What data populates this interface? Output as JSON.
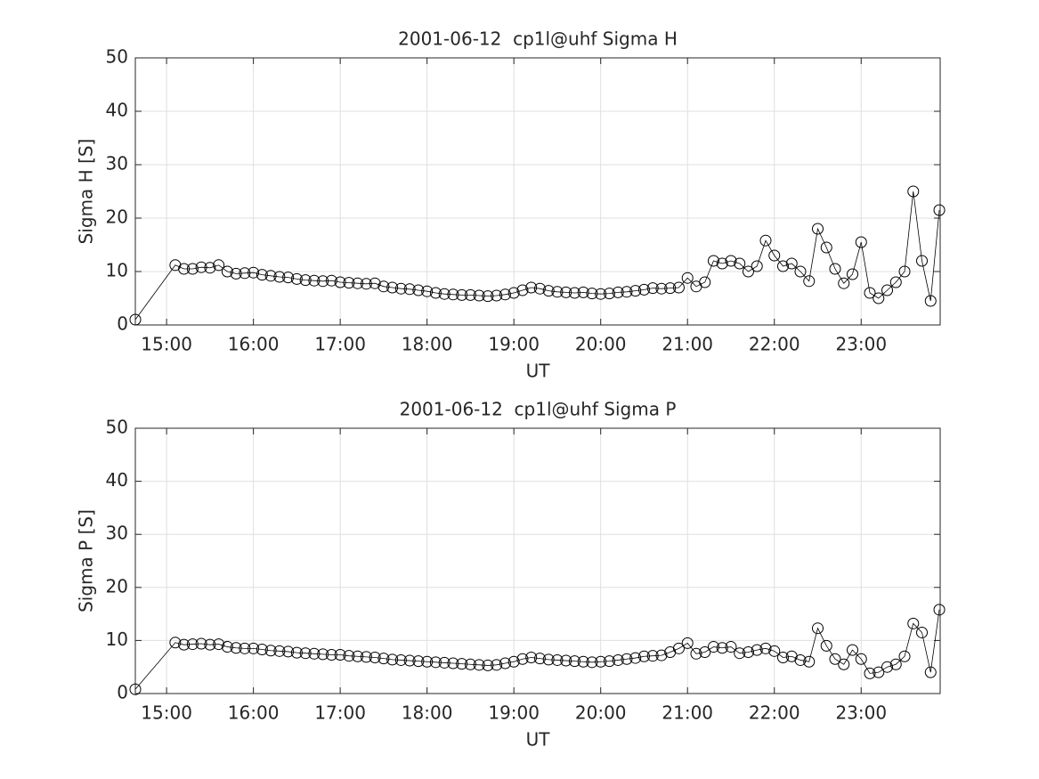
{
  "chart_data": [
    {
      "type": "line",
      "title": "2001-06-12  cp1l@uhf Sigma H",
      "xlabel": "UT",
      "ylabel": "Sigma H [S]",
      "x": [
        14.64,
        15.1,
        15.2,
        15.3,
        15.4,
        15.5,
        15.6,
        15.7,
        15.8,
        15.9,
        16.0,
        16.1,
        16.2,
        16.3,
        16.4,
        16.5,
        16.6,
        16.7,
        16.8,
        16.9,
        17.0,
        17.1,
        17.2,
        17.3,
        17.4,
        17.5,
        17.6,
        17.7,
        17.8,
        17.9,
        18.0,
        18.1,
        18.2,
        18.3,
        18.4,
        18.5,
        18.6,
        18.7,
        18.8,
        18.9,
        19.0,
        19.1,
        19.2,
        19.3,
        19.4,
        19.5,
        19.6,
        19.7,
        19.8,
        19.9,
        20.0,
        20.1,
        20.2,
        20.3,
        20.4,
        20.5,
        20.6,
        20.7,
        20.8,
        20.9,
        21.0,
        21.1,
        21.2,
        21.3,
        21.4,
        21.5,
        21.6,
        21.7,
        21.8,
        21.9,
        22.0,
        22.1,
        22.2,
        22.3,
        22.4,
        22.5,
        22.6,
        22.7,
        22.8,
        22.9,
        23.0,
        23.1,
        23.2,
        23.3,
        23.4,
        23.5,
        23.6,
        23.7,
        23.8,
        23.9
      ],
      "series": [
        {
          "name": "Sigma H",
          "color": "#000000",
          "values": [
            1.0,
            11.2,
            10.5,
            10.5,
            10.8,
            10.7,
            11.2,
            10.0,
            9.6,
            9.7,
            9.8,
            9.4,
            9.2,
            9.0,
            8.9,
            8.6,
            8.4,
            8.3,
            8.2,
            8.3,
            8.0,
            7.9,
            7.8,
            7.7,
            7.8,
            7.2,
            7.0,
            6.8,
            6.7,
            6.5,
            6.3,
            6.0,
            5.8,
            5.7,
            5.6,
            5.6,
            5.5,
            5.4,
            5.5,
            5.7,
            6.0,
            6.5,
            7.0,
            6.8,
            6.4,
            6.2,
            6.1,
            6.0,
            6.1,
            5.9,
            5.8,
            5.9,
            6.1,
            6.2,
            6.4,
            6.6,
            6.9,
            6.8,
            6.9,
            7.0,
            8.8,
            7.2,
            8.0,
            12.0,
            11.5,
            12.0,
            11.5,
            10.0,
            11.0,
            15.8,
            13.0,
            11.0,
            11.5,
            10.0,
            8.2,
            18.0,
            14.5,
            10.5,
            7.8,
            9.5,
            15.5,
            6.0,
            5.0,
            6.5,
            8.0,
            10.0,
            25.0,
            12.0,
            4.5,
            21.5
          ]
        }
      ],
      "xlim": [
        14.64,
        23.91
      ],
      "xticks": [
        {
          "value": 15,
          "label": "15:00"
        },
        {
          "value": 16,
          "label": "16:00"
        },
        {
          "value": 17,
          "label": "17:00"
        },
        {
          "value": 18,
          "label": "18:00"
        },
        {
          "value": 19,
          "label": "19:00"
        },
        {
          "value": 20,
          "label": "20:00"
        },
        {
          "value": 21,
          "label": "21:00"
        },
        {
          "value": 22,
          "label": "22:00"
        },
        {
          "value": 23,
          "label": "23:00"
        }
      ],
      "ylim": [
        0,
        50
      ],
      "yticks": [
        0,
        10,
        20,
        30,
        40,
        50
      ],
      "grid": true
    },
    {
      "type": "line",
      "title": "2001-06-12  cp1l@uhf Sigma P",
      "xlabel": "UT",
      "ylabel": "Sigma P [S]",
      "x": [
        14.64,
        15.1,
        15.2,
        15.3,
        15.4,
        15.5,
        15.6,
        15.7,
        15.8,
        15.9,
        16.0,
        16.1,
        16.2,
        16.3,
        16.4,
        16.5,
        16.6,
        16.7,
        16.8,
        16.9,
        17.0,
        17.1,
        17.2,
        17.3,
        17.4,
        17.5,
        17.6,
        17.7,
        17.8,
        17.9,
        18.0,
        18.1,
        18.2,
        18.3,
        18.4,
        18.5,
        18.6,
        18.7,
        18.8,
        18.9,
        19.0,
        19.1,
        19.2,
        19.3,
        19.4,
        19.5,
        19.6,
        19.7,
        19.8,
        19.9,
        20.0,
        20.1,
        20.2,
        20.3,
        20.4,
        20.5,
        20.6,
        20.7,
        20.8,
        20.9,
        21.0,
        21.1,
        21.2,
        21.3,
        21.4,
        21.5,
        21.6,
        21.7,
        21.8,
        21.9,
        22.0,
        22.1,
        22.2,
        22.3,
        22.4,
        22.5,
        22.6,
        22.7,
        22.8,
        22.9,
        23.0,
        23.1,
        23.2,
        23.3,
        23.4,
        23.5,
        23.6,
        23.7,
        23.8,
        23.9
      ],
      "series": [
        {
          "name": "Sigma P",
          "color": "#000000",
          "values": [
            0.8,
            9.6,
            9.2,
            9.3,
            9.4,
            9.2,
            9.3,
            8.8,
            8.6,
            8.5,
            8.5,
            8.3,
            8.1,
            8.0,
            7.9,
            7.7,
            7.6,
            7.5,
            7.4,
            7.3,
            7.3,
            7.1,
            7.0,
            6.9,
            6.8,
            6.6,
            6.4,
            6.3,
            6.2,
            6.1,
            6.0,
            5.9,
            5.8,
            5.7,
            5.6,
            5.5,
            5.4,
            5.3,
            5.4,
            5.7,
            6.0,
            6.5,
            6.8,
            6.6,
            6.4,
            6.3,
            6.2,
            6.1,
            6.0,
            5.9,
            6.0,
            6.1,
            6.3,
            6.5,
            6.7,
            7.0,
            7.1,
            7.2,
            7.8,
            8.5,
            9.5,
            7.5,
            7.8,
            8.8,
            8.6,
            8.8,
            7.6,
            7.8,
            8.2,
            8.5,
            8.0,
            6.8,
            7.0,
            6.3,
            6.0,
            12.3,
            9.0,
            6.5,
            5.5,
            8.2,
            6.5,
            3.8,
            4.0,
            5.0,
            5.5,
            7.0,
            13.2,
            11.5,
            4.0,
            15.8
          ]
        }
      ],
      "xlim": [
        14.64,
        23.91
      ],
      "xticks": [
        {
          "value": 15,
          "label": "15:00"
        },
        {
          "value": 16,
          "label": "16:00"
        },
        {
          "value": 17,
          "label": "17:00"
        },
        {
          "value": 18,
          "label": "18:00"
        },
        {
          "value": 19,
          "label": "19:00"
        },
        {
          "value": 20,
          "label": "20:00"
        },
        {
          "value": 21,
          "label": "21:00"
        },
        {
          "value": 22,
          "label": "22:00"
        },
        {
          "value": 23,
          "label": "23:00"
        }
      ],
      "ylim": [
        0,
        50
      ],
      "yticks": [
        0,
        10,
        20,
        30,
        40,
        50
      ],
      "grid": true
    }
  ]
}
